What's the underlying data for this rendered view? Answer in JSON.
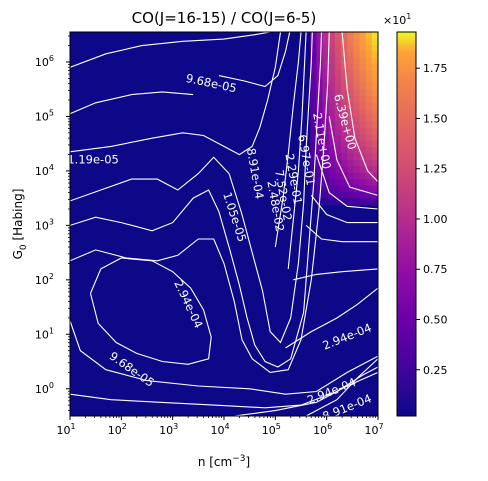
{
  "chart_data": {
    "type": "heatmap",
    "title": "CO(J=16-15) / CO(J=6-5)",
    "xlabel": "n [cm",
    "xlabel_sup": "−3",
    "xlabel_end": "]",
    "ylabel": "G",
    "ylabel_sub": "0",
    "ylabel_end": " [Habing]",
    "x_scale": "log",
    "y_scale": "log",
    "xlim_log10": [
      1,
      7
    ],
    "ylim_log10": [
      -0.5,
      6.55
    ],
    "x_ticks": [
      {
        "exp": "1",
        "label": "10"
      },
      {
        "exp": "2",
        "label": "10"
      },
      {
        "exp": "3",
        "label": "10"
      },
      {
        "exp": "4",
        "label": "10"
      },
      {
        "exp": "5",
        "label": "10"
      },
      {
        "exp": "6",
        "label": "10"
      },
      {
        "exp": "7",
        "label": "10"
      }
    ],
    "y_ticks": [
      {
        "exp": "0",
        "label": "10"
      },
      {
        "exp": "1",
        "label": "10"
      },
      {
        "exp": "2",
        "label": "10"
      },
      {
        "exp": "3",
        "label": "10"
      },
      {
        "exp": "4",
        "label": "10"
      },
      {
        "exp": "5",
        "label": "10"
      },
      {
        "exp": "6",
        "label": "10"
      }
    ],
    "colormap": "plasma",
    "colorbar": {
      "range": [
        0.02,
        1.93
      ],
      "ticks": [
        "0.25",
        "0.50",
        "0.75",
        "1.00",
        "1.25",
        "1.50",
        "1.75"
      ],
      "multiplier_base": "×10",
      "multiplier_exp": "1"
    },
    "high_region": {
      "description_values": "ratio rises steeply above n ≈ 10^5.6 and G0 ≈ 10^3.5, peak ≈ 19.3 at top-right corner",
      "peak_value": 19.3
    },
    "contour_labels": [
      {
        "text": "9.68e-05",
        "log_n": 3.75,
        "log_g": 5.6,
        "angle": 12
      },
      {
        "text": "1.19e-05",
        "log_n": 1.45,
        "log_g": 4.2,
        "angle": 0
      },
      {
        "text": "1.05e-05",
        "log_n": 4.2,
        "log_g": 3.15,
        "angle": 72
      },
      {
        "text": "2.94e-04",
        "log_n": 3.3,
        "log_g": 1.55,
        "angle": 65
      },
      {
        "text": "9.68e-05",
        "log_n": 2.2,
        "log_g": 0.35,
        "angle": 35
      },
      {
        "text": "6.39e+00",
        "log_n": 6.35,
        "log_g": 4.9,
        "angle": 75
      },
      {
        "text": "2.11e+00",
        "log_n": 5.9,
        "log_g": 4.55,
        "angle": 80
      },
      {
        "text": "6.97e-01",
        "log_n": 5.6,
        "log_g": 4.2,
        "angle": 80
      },
      {
        "text": "2.29e-01",
        "log_n": 5.35,
        "log_g": 3.85,
        "angle": 80
      },
      {
        "text": "7.52e-02",
        "log_n": 5.15,
        "log_g": 3.55,
        "angle": 80
      },
      {
        "text": "2.48e-02",
        "log_n": 5.0,
        "log_g": 3.35,
        "angle": 80
      },
      {
        "text": "8.91e-04",
        "log_n": 4.6,
        "log_g": 3.95,
        "angle": 80
      },
      {
        "text": "2.94e-04",
        "log_n": 6.4,
        "log_g": 0.95,
        "angle": -22
      },
      {
        "text": "2.94e-04",
        "log_n": 6.1,
        "log_g": -0.05,
        "angle": -22
      },
      {
        "text": "8.91e-04",
        "log_n": 6.4,
        "log_g": -0.35,
        "angle": -22
      }
    ]
  }
}
